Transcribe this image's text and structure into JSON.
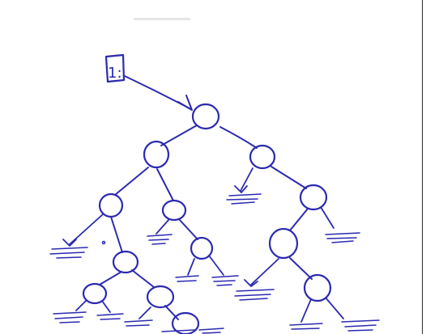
{
  "diagram": {
    "kind": "hand-drawn binary tree",
    "pointer_label": "1:",
    "ink_color": "#2b2ab0",
    "nodes": [
      "n1",
      "n2",
      "n3",
      "n4",
      "n5",
      "n6",
      "n7",
      "n8",
      "n9",
      "n10",
      "n11",
      "n12",
      "n13"
    ],
    "edges": [
      [
        "n1",
        "n2"
      ],
      [
        "n1",
        "n3"
      ],
      [
        "n2",
        "n4"
      ],
      [
        "n2",
        "n5"
      ],
      [
        "n3",
        "n6"
      ],
      [
        "n4",
        "n7"
      ],
      [
        "n5",
        "n8"
      ],
      [
        "n6",
        "n9"
      ],
      [
        "n7",
        "n10"
      ],
      [
        "n7",
        "n11"
      ],
      [
        "n9",
        "n12"
      ],
      [
        "n11",
        "n13"
      ]
    ]
  }
}
